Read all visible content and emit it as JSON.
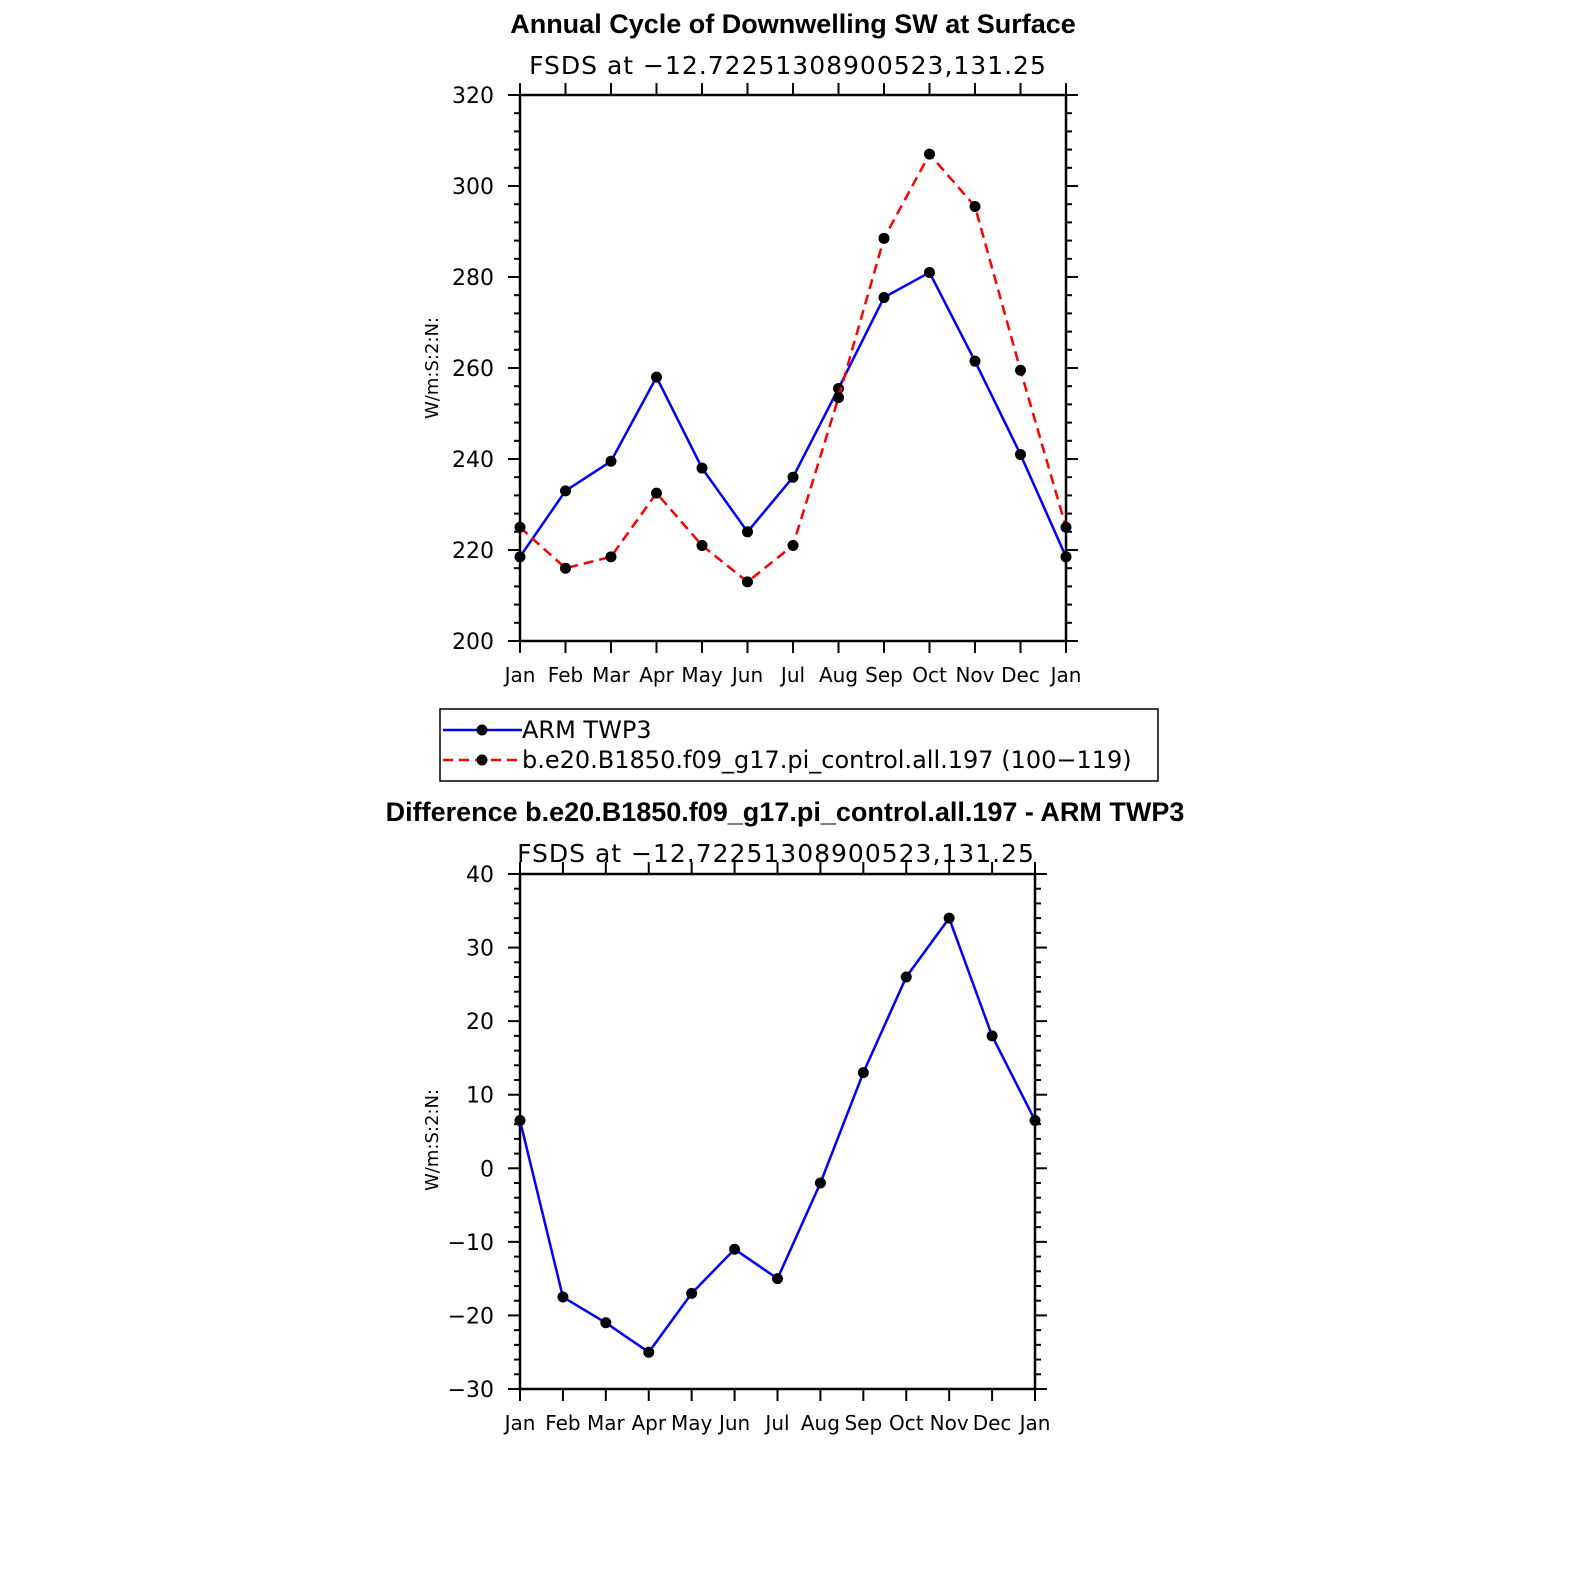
{
  "colors": {
    "obs": "#0000ff",
    "model": "#ff0000",
    "marker": "#000000",
    "axis": "#000000"
  },
  "chart_data": [
    {
      "type": "line",
      "title": "Annual Cycle of Downwelling SW at Surface",
      "subtitle": "FSDS at −12.72251308900523,131.25",
      "ylabel": "W/m:S:2:N:",
      "xlabel": "",
      "categories": [
        "Jan",
        "Feb",
        "Mar",
        "Apr",
        "May",
        "Jun",
        "Jul",
        "Aug",
        "Sep",
        "Oct",
        "Nov",
        "Dec",
        "Jan"
      ],
      "ylim": [
        200,
        320
      ],
      "yticks": [
        200,
        220,
        240,
        260,
        280,
        300,
        320
      ],
      "series": [
        {
          "name": "ARM TWP3",
          "style": "solid",
          "color": "#0000ff",
          "values": [
            218.5,
            233.0,
            239.5,
            258.0,
            238.0,
            224.0,
            236.0,
            255.5,
            275.5,
            281.0,
            261.5,
            241.0,
            218.5
          ]
        },
        {
          "name": "b.e20.B1850.f09_g17.pi_control.all.197 (100−119)",
          "style": "dashed",
          "color": "#ff0000",
          "values": [
            225.0,
            216.0,
            218.5,
            232.5,
            221.0,
            213.0,
            221.0,
            253.5,
            288.5,
            307.0,
            295.5,
            259.5,
            225.0
          ]
        }
      ],
      "legend": "below"
    },
    {
      "type": "line",
      "title": "Difference b.e20.B1850.f09_g17.pi_control.all.197 - ARM TWP3",
      "subtitle": "FSDS at −12.72251308900523,131.25",
      "ylabel": "W/m:S:2:N:",
      "xlabel": "",
      "categories": [
        "Jan",
        "Feb",
        "Mar",
        "Apr",
        "May",
        "Jun",
        "Jul",
        "Aug",
        "Sep",
        "Oct",
        "Nov",
        "Dec",
        "Jan"
      ],
      "ylim": [
        -30,
        40
      ],
      "yticks": [
        -30,
        -20,
        -10,
        0,
        10,
        20,
        30,
        40
      ],
      "ytick_labels": [
        "−30",
        "−20",
        "−10",
        "0",
        "10",
        "20",
        "30",
        "40"
      ],
      "series": [
        {
          "name": "",
          "style": "solid",
          "color": "#0000ff",
          "values": [
            6.5,
            -17.5,
            -21.0,
            -25.0,
            -17.0,
            -11.0,
            -15.0,
            -2.0,
            13.0,
            26.0,
            34.0,
            18.0,
            6.5
          ]
        }
      ]
    }
  ]
}
